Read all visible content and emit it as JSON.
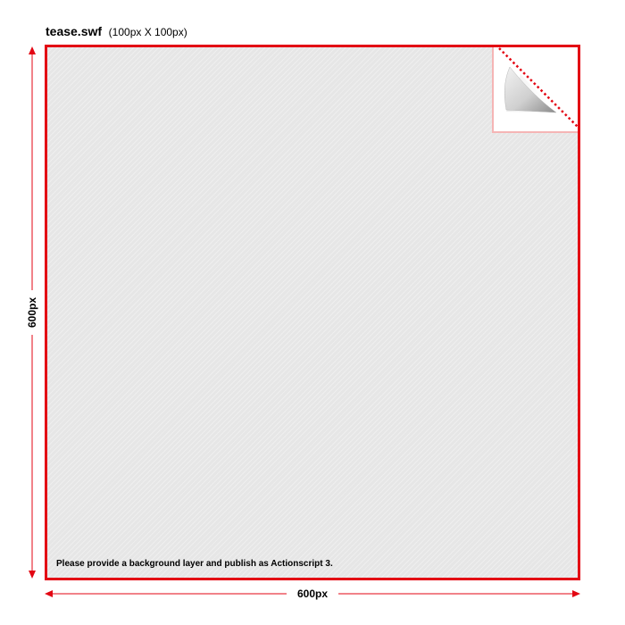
{
  "header": {
    "filename": "tease.swf",
    "dimensions": "(100px X 100px)"
  },
  "canvas": {
    "instruction": "Please provide a background layer and publish as Actionscript 3.",
    "border_color": "#e30613",
    "fill_color": "#e6e6e6"
  },
  "measurements": {
    "height_label": "600px",
    "width_label": "600px",
    "arrow_color": "#e30613"
  },
  "icons": {
    "corner": "page-curl-icon"
  }
}
